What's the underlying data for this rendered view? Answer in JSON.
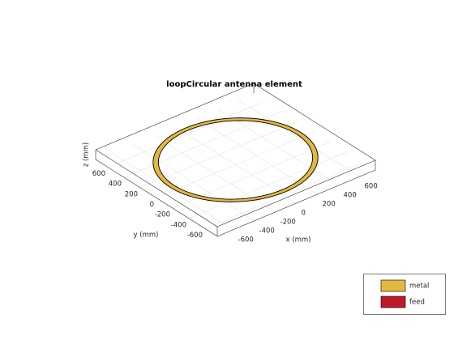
{
  "chart_data": {
    "type": "loop-3d",
    "title": "loopCircular antenna element",
    "xlabel": "x (mm)",
    "ylabel": "y (mm)",
    "zlabel": "z (mm)",
    "xlim": [
      -750,
      750
    ],
    "ylim": [
      -750,
      750
    ],
    "zlim": [
      -10,
      10
    ],
    "xticks": [
      -600,
      -400,
      -200,
      0,
      200,
      400,
      600
    ],
    "yticks": [
      -600,
      -400,
      -200,
      0,
      200,
      400,
      600
    ],
    "radius": 600,
    "strip_width": 20,
    "grid": true,
    "legend": {
      "position": "lower right",
      "entries": [
        {
          "name": "metal",
          "color": "#e3b83f"
        },
        {
          "name": "feed",
          "color": "#c0182b"
        }
      ]
    }
  }
}
